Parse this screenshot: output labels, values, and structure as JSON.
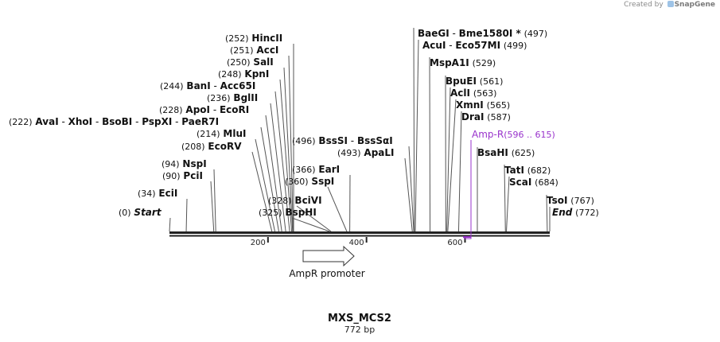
{
  "credit": {
    "prefix": "Created by",
    "brand": "SnapGene"
  },
  "map": {
    "name": "MXS_MCS2",
    "length_label": "772 bp",
    "length": 772,
    "ruler_ticks": [
      {
        "pos": 200,
        "label": "200"
      },
      {
        "pos": 400,
        "label": "400"
      },
      {
        "pos": 600,
        "label": "600"
      }
    ],
    "features": [
      {
        "name": "AmpR promoter",
        "start": 272,
        "end": 376,
        "direction": "forward",
        "color": "#ffffff"
      },
      {
        "name": "Amp-R",
        "range_label": "(596 .. 615)",
        "start": 596,
        "end": 615,
        "color": "#9933cc"
      }
    ]
  },
  "sites": [
    {
      "pos": 0,
      "paren": "(0)",
      "names": [
        "Start"
      ],
      "italic": true
    },
    {
      "pos": 34,
      "paren": "(34)",
      "names": [
        "EciI"
      ]
    },
    {
      "pos": 90,
      "paren": "(90)",
      "names": [
        "PciI"
      ]
    },
    {
      "pos": 94,
      "paren": "(94)",
      "names": [
        "NspI"
      ]
    },
    {
      "pos": 208,
      "paren": "(208)",
      "names": [
        "EcoRV"
      ]
    },
    {
      "pos": 214,
      "paren": "(214)",
      "names": [
        "MluI"
      ]
    },
    {
      "pos": 222,
      "paren": "(222)",
      "names": [
        "AvaI",
        "XhoI",
        "BsoBI",
        "PspXI",
        "PaeR7I"
      ]
    },
    {
      "pos": 228,
      "paren": "(228)",
      "names": [
        "ApoI",
        "EcoRI"
      ]
    },
    {
      "pos": 236,
      "paren": "(236)",
      "names": [
        "BglII"
      ]
    },
    {
      "pos": 244,
      "paren": "(244)",
      "names": [
        "BanI",
        "Acc65I"
      ]
    },
    {
      "pos": 248,
      "paren": "(248)",
      "names": [
        "KpnI"
      ]
    },
    {
      "pos": 250,
      "paren": "(250)",
      "names": [
        "SalI"
      ]
    },
    {
      "pos": 251,
      "paren": "(251)",
      "names": [
        "AccI"
      ]
    },
    {
      "pos": 252,
      "paren": "(252)",
      "names": [
        "HincII"
      ]
    },
    {
      "pos": 325,
      "paren": "(325)",
      "names": [
        "BspHI"
      ]
    },
    {
      "pos": 328,
      "paren": "(328)",
      "names": [
        "BciVI"
      ]
    },
    {
      "pos": 360,
      "paren": "(360)",
      "names": [
        "SspI"
      ]
    },
    {
      "pos": 366,
      "paren": "(366)",
      "names": [
        "EarI"
      ]
    },
    {
      "pos": 493,
      "paren": "(493)",
      "names": [
        "ApaLI"
      ]
    },
    {
      "pos": 496,
      "paren": "(496)",
      "names": [
        "BssSI",
        "BssSαI"
      ]
    },
    {
      "pos": 497,
      "paren": "(497)",
      "names": [
        "BaeGI",
        "Bme1580I *"
      ]
    },
    {
      "pos": 499,
      "paren": "(499)",
      "names": [
        "AcuI",
        "Eco57MI"
      ]
    },
    {
      "pos": 529,
      "paren": "(529)",
      "names": [
        "MspA1I"
      ]
    },
    {
      "pos": 561,
      "paren": "(561)",
      "names": [
        "BpuEI"
      ]
    },
    {
      "pos": 563,
      "paren": "(563)",
      "names": [
        "AclI"
      ]
    },
    {
      "pos": 565,
      "paren": "(565)",
      "names": [
        "XmnI"
      ]
    },
    {
      "pos": 587,
      "paren": "(587)",
      "names": [
        "DraI"
      ]
    },
    {
      "pos": 625,
      "paren": "(625)",
      "names": [
        "BsaHI"
      ]
    },
    {
      "pos": 682,
      "paren": "(682)",
      "names": [
        "TatI"
      ]
    },
    {
      "pos": 684,
      "paren": "(684)",
      "names": [
        "ScaI"
      ]
    },
    {
      "pos": 767,
      "paren": "(767)",
      "names": [
        "TsoI"
      ]
    },
    {
      "pos": 772,
      "paren": "(772)",
      "names": [
        "End"
      ],
      "italic": true
    }
  ]
}
